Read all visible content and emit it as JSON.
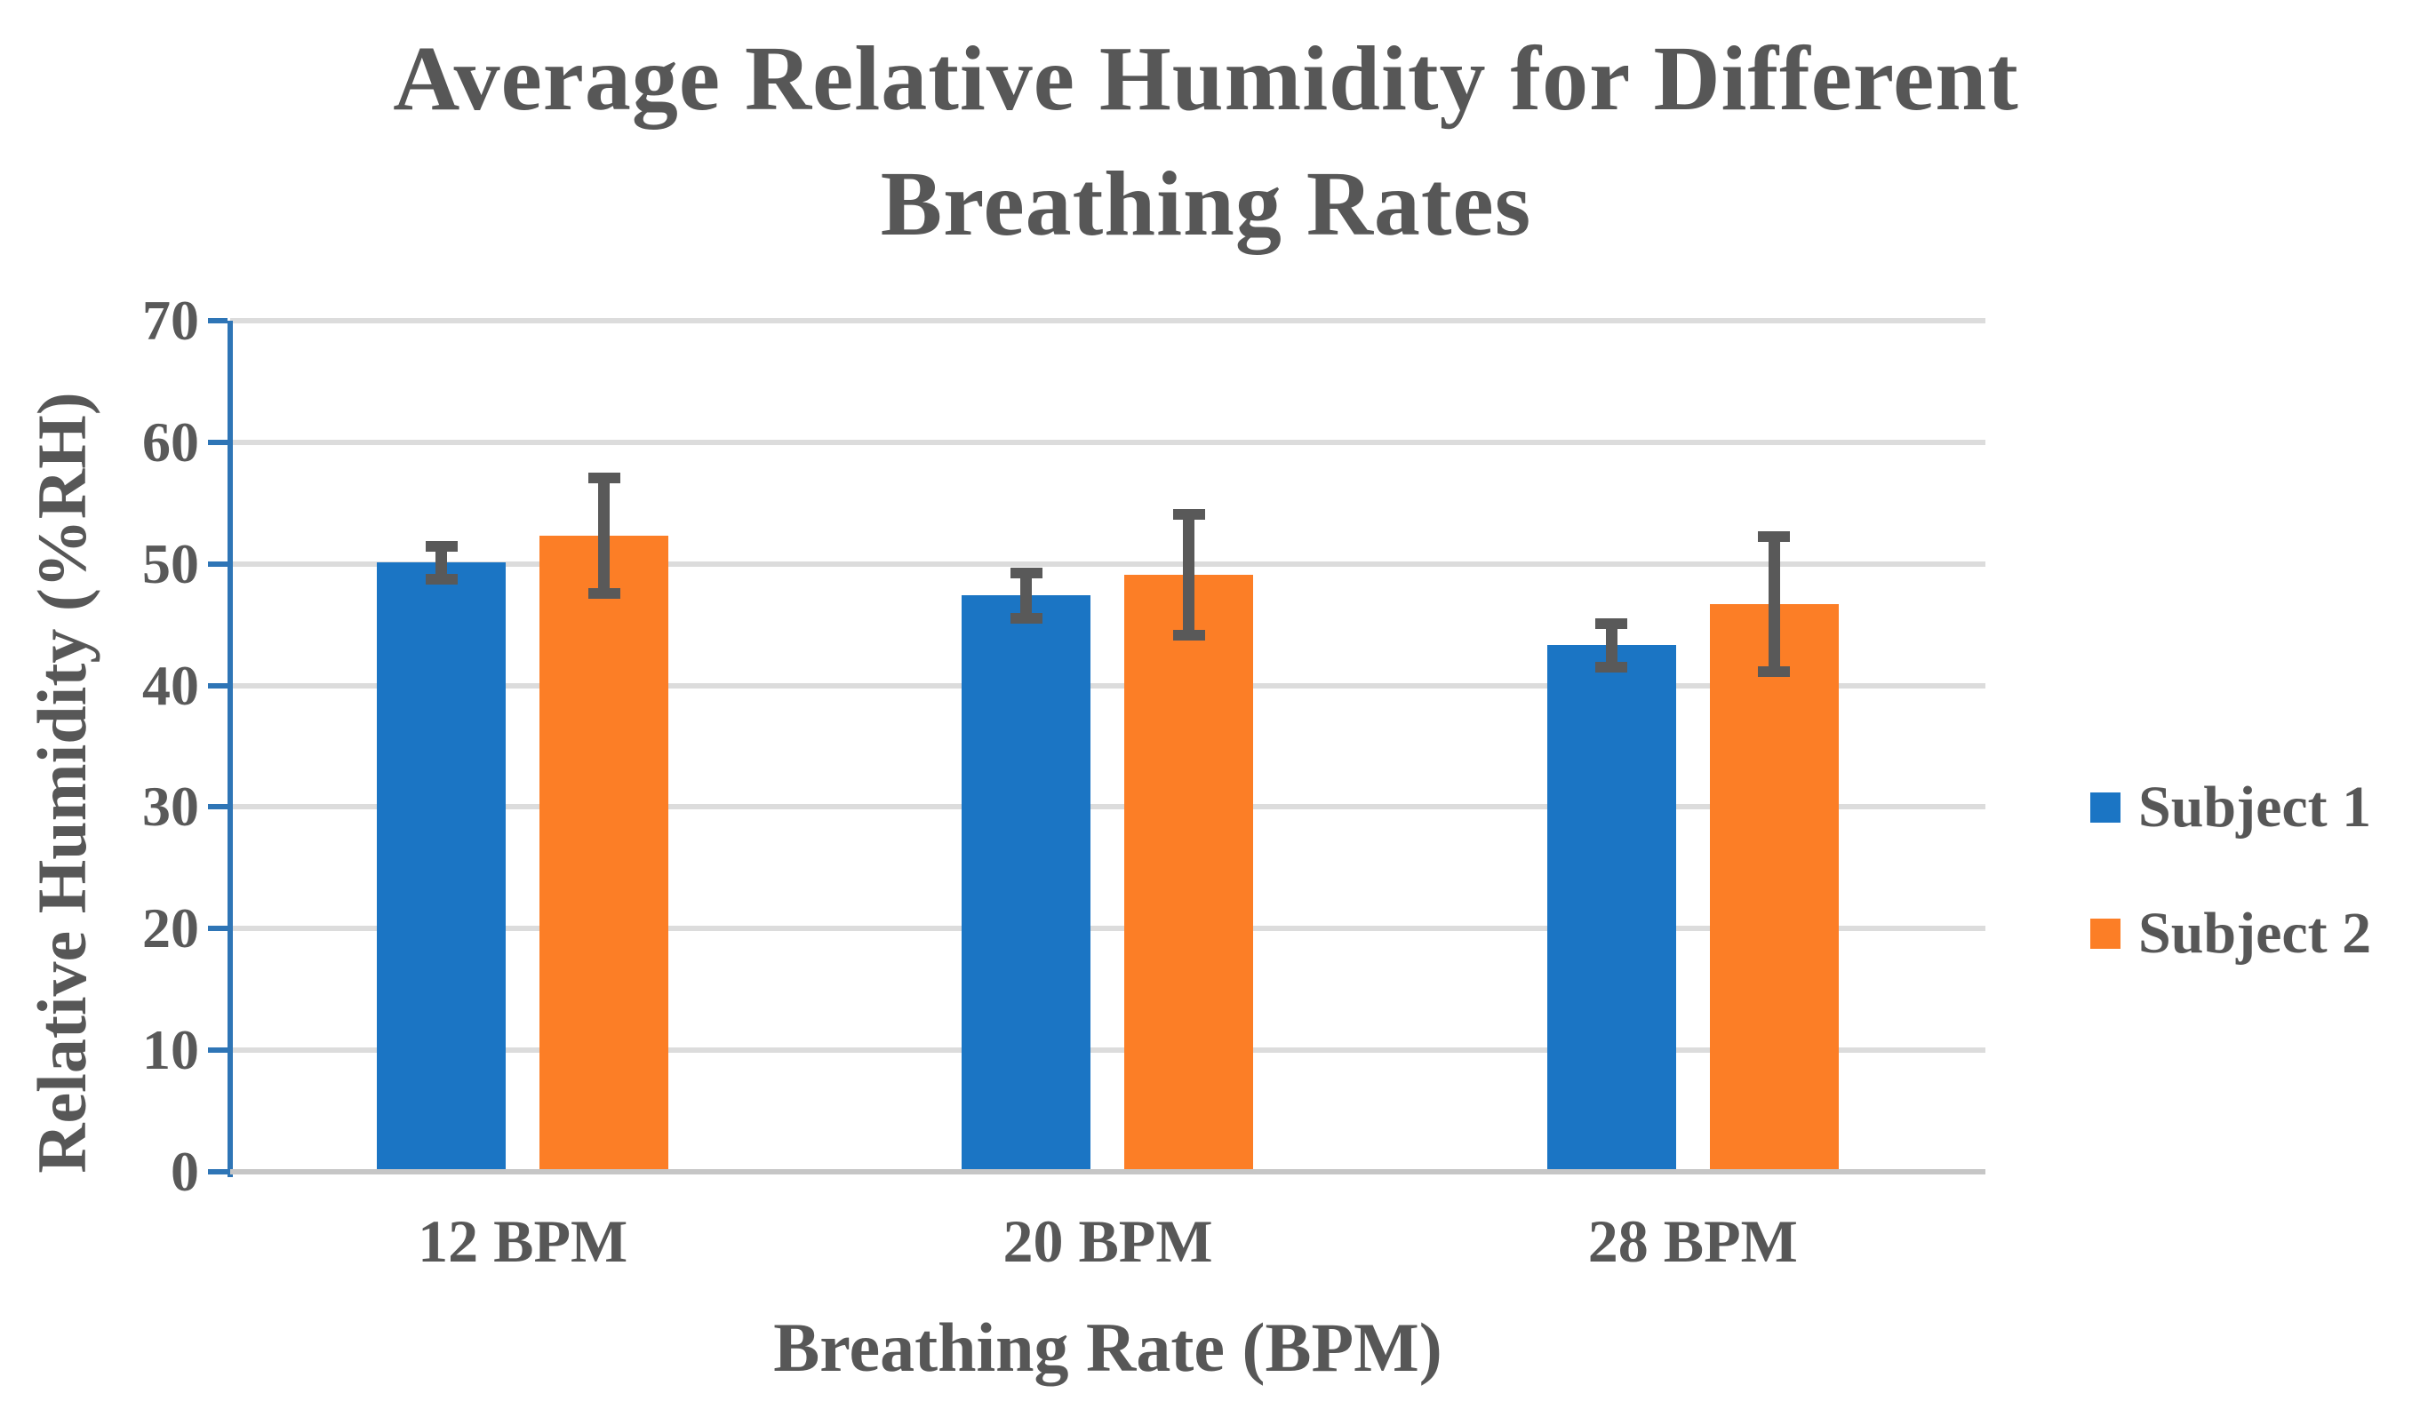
{
  "chart_data": {
    "type": "bar",
    "title": "Average Relative Humidity for Different Breathing Rates",
    "title_lines": [
      "Average Relative Humidity for Different",
      "Breathing Rates"
    ],
    "categories": [
      "12 BPM",
      "20 BPM",
      "28 BPM"
    ],
    "series": [
      {
        "name": "Subject 1",
        "color": "#1b75c4",
        "values": [
          50.1,
          47.4,
          43.3
        ],
        "errors": [
          1.8,
          2.3,
          2.2
        ]
      },
      {
        "name": "Subject 2",
        "color": "#fc7e26",
        "values": [
          52.3,
          49.1,
          46.7
        ],
        "errors": [
          5.2,
          5.4,
          6.0
        ]
      }
    ],
    "xlabel": "Breathing Rate (BPM)",
    "ylabel": "Relative Humidity (%RH)",
    "ylim": [
      0,
      70
    ],
    "yticks": [
      0,
      10,
      20,
      30,
      40,
      50,
      60,
      70
    ],
    "grid": true,
    "legend_position": "right",
    "colors": {
      "axis": "#2e75b6",
      "gridline": "#dcdcdc",
      "baseline": "#c6c6c6",
      "error_bar": "#595959",
      "text": "#575757"
    }
  }
}
